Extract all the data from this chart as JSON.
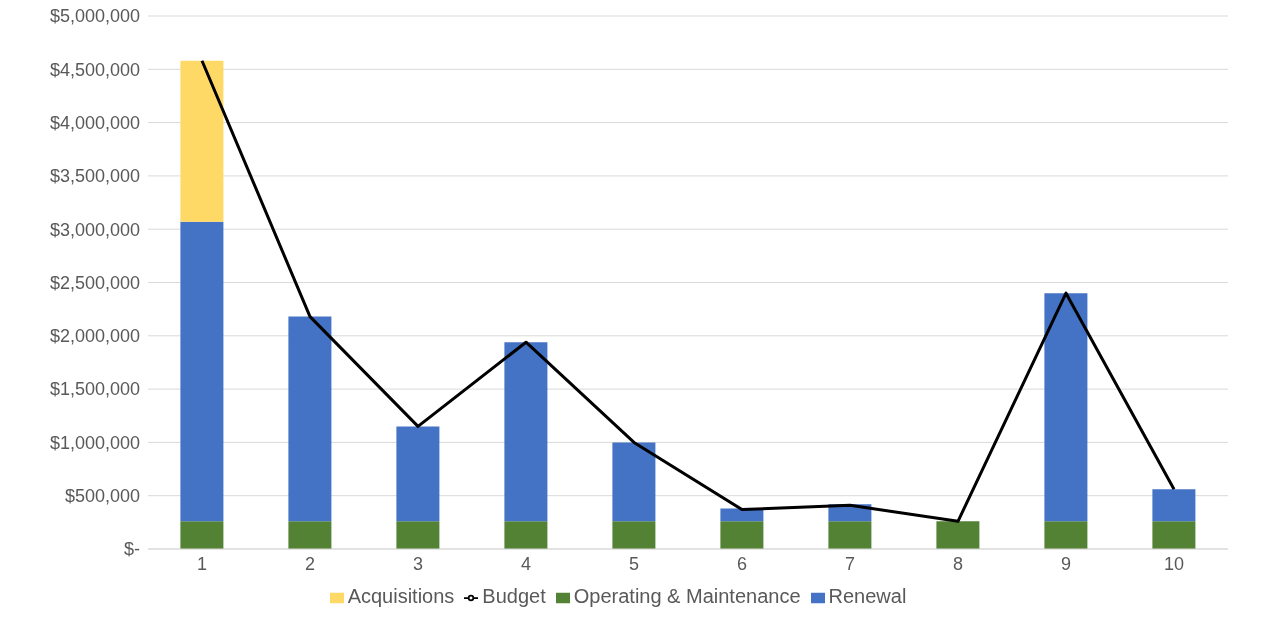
{
  "chart_data": {
    "type": "bar",
    "stacked": true,
    "categories": [
      "1",
      "2",
      "3",
      "4",
      "5",
      "6",
      "7",
      "8",
      "9",
      "10"
    ],
    "series": [
      {
        "name": "Operating & Maintenance",
        "color": "#548235",
        "values": [
          260000,
          260000,
          260000,
          260000,
          260000,
          260000,
          260000,
          260000,
          260000,
          260000
        ]
      },
      {
        "name": "Renewal",
        "color": "#4472c4",
        "values": [
          2810000,
          1920000,
          890000,
          1680000,
          740000,
          120000,
          160000,
          0,
          2140000,
          300000
        ]
      },
      {
        "name": "Acquisitions",
        "color": "#ffd966",
        "values": [
          1510000,
          0,
          0,
          0,
          0,
          0,
          0,
          0,
          0,
          0
        ]
      },
      {
        "name": "Budget",
        "type": "line",
        "color": "#000000",
        "values": [
          4580000,
          2180000,
          1150000,
          1940000,
          1000000,
          370000,
          410000,
          260000,
          2400000,
          560000
        ]
      }
    ],
    "ylim": [
      0,
      5000000
    ],
    "yticks": [
      {
        "value": 0,
        "label": "$-"
      },
      {
        "value": 500000,
        "label": "$500,000"
      },
      {
        "value": 1000000,
        "label": "$1,000,000"
      },
      {
        "value": 1500000,
        "label": "$1,500,000"
      },
      {
        "value": 2000000,
        "label": "$2,000,000"
      },
      {
        "value": 2500000,
        "label": "$2,500,000"
      },
      {
        "value": 3000000,
        "label": "$3,000,000"
      },
      {
        "value": 3500000,
        "label": "$3,500,000"
      },
      {
        "value": 4000000,
        "label": "$4,000,000"
      },
      {
        "value": 4500000,
        "label": "$4,500,000"
      },
      {
        "value": 5000000,
        "label": "$5,000,000"
      }
    ],
    "grid": "y",
    "legend": "bottom",
    "marker": "none",
    "line_style": "solid"
  }
}
